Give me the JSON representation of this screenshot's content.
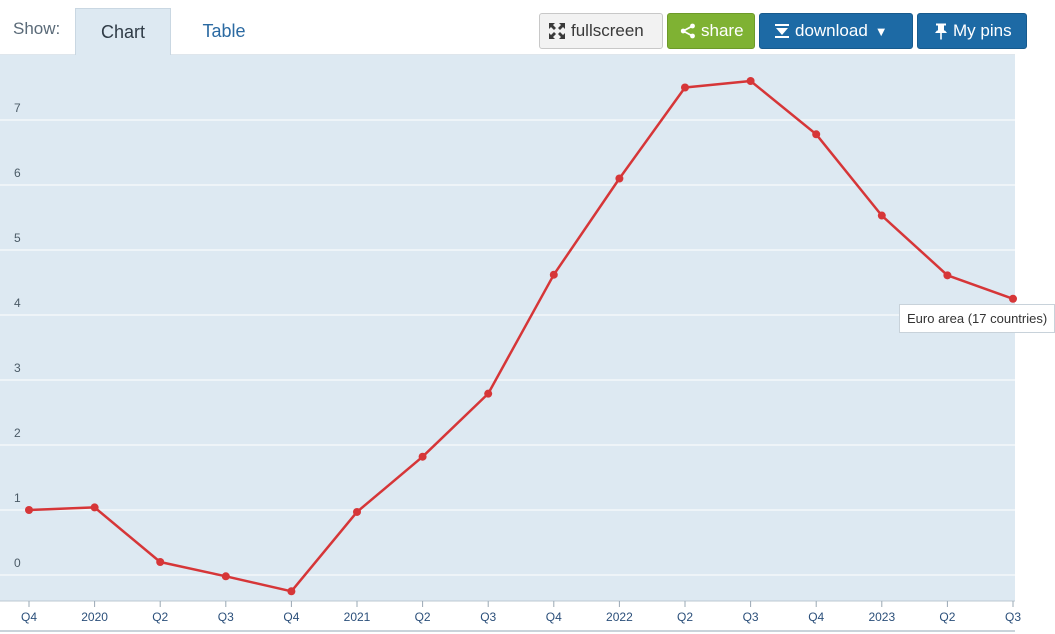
{
  "toolbar": {
    "show_label": "Show:",
    "tabs": [
      {
        "label": "Chart",
        "active": true
      },
      {
        "label": "Table",
        "active": false
      }
    ],
    "buttons": {
      "fullscreen": "fullscreen",
      "share": "share",
      "download": "download",
      "download_caret": "▼",
      "pins": "My pins"
    }
  },
  "colors": {
    "plot_background": "#dde9f2",
    "series_line": "#d63638",
    "share_green": "#7fb233",
    "primary_blue": "#1d6aa5"
  },
  "tooltip": {
    "text": "Euro area (17 countries)"
  },
  "chart_data": {
    "type": "line",
    "title": "",
    "xlabel": "",
    "ylabel": "",
    "ylim": [
      -0.3,
      7.9
    ],
    "yticks": [
      0,
      1,
      2,
      3,
      4,
      5,
      6,
      7
    ],
    "grid": true,
    "categories": [
      "Q4",
      "2020",
      "Q2",
      "Q3",
      "Q4",
      "2021",
      "Q2",
      "Q3",
      "Q4",
      "2022",
      "Q2",
      "Q3",
      "Q4",
      "2023",
      "Q2",
      "Q3"
    ],
    "series": [
      {
        "name": "Euro area (17 countries)",
        "values": [
          1.0,
          1.04,
          0.2,
          -0.02,
          -0.25,
          0.97,
          1.82,
          2.79,
          4.62,
          6.1,
          7.5,
          7.6,
          6.78,
          5.53,
          4.61,
          4.25
        ]
      }
    ]
  }
}
